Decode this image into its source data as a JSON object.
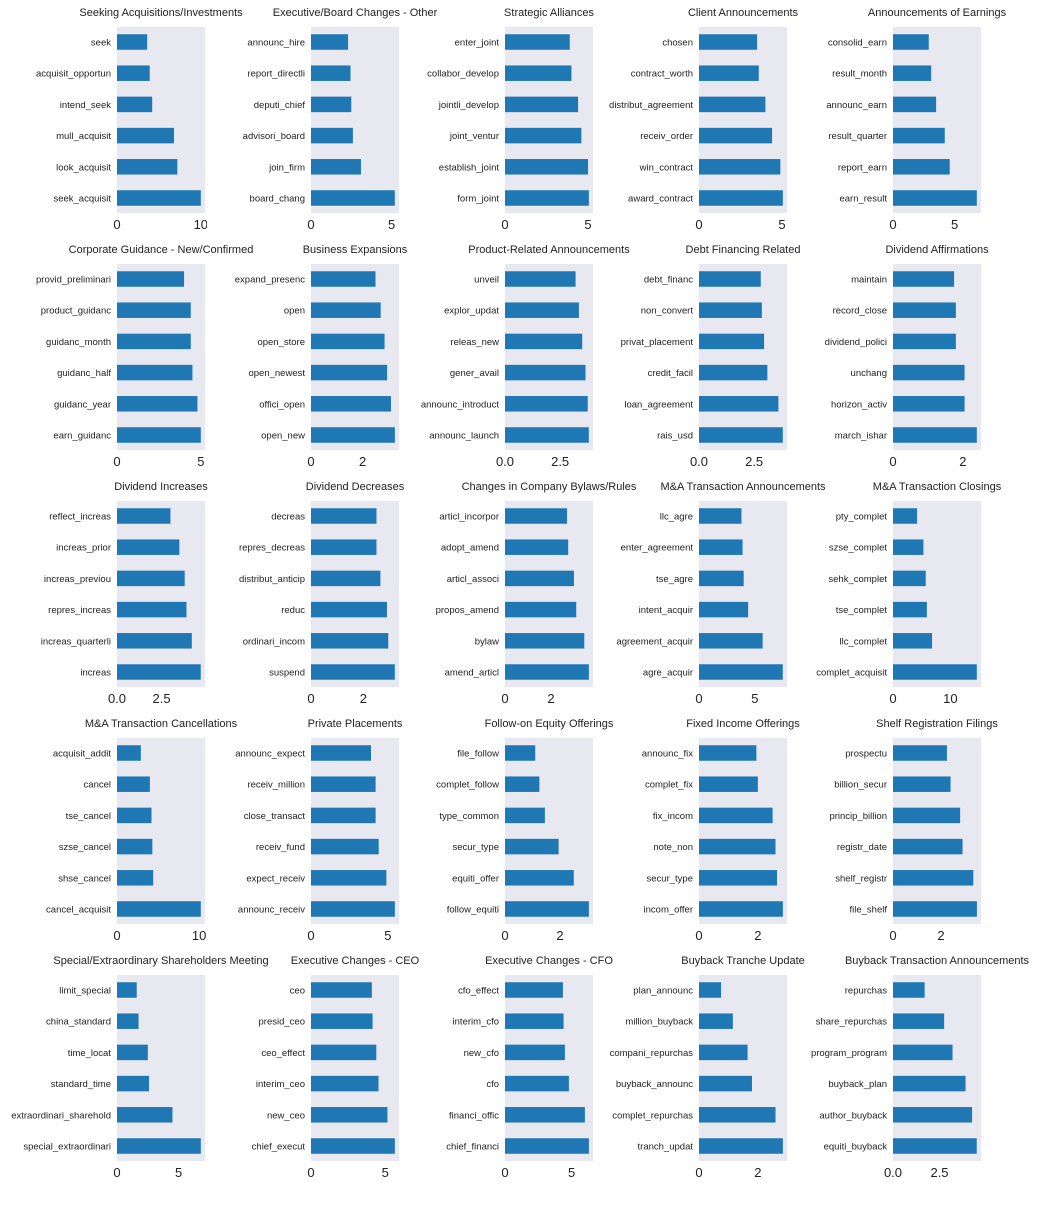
{
  "colors": {
    "bar": "#1f77b4",
    "plot_bg": "#e8e8f1",
    "text": "#222222"
  },
  "chart_data": [
    {
      "type": "bar",
      "orientation": "horizontal",
      "title": "Seeking Acquisitions/Investments",
      "categories": [
        "seek",
        "acquisit_opportun",
        "intend_seek",
        "mull_acquisit",
        "look_acquisit",
        "seek_acquisit"
      ],
      "values": [
        3.6,
        3.9,
        4.2,
        6.8,
        7.2,
        10.0
      ],
      "xticks": [
        0,
        10
      ],
      "xlabels": [
        "0",
        "10"
      ],
      "xlim": [
        0,
        10.5
      ]
    },
    {
      "type": "bar",
      "orientation": "horizontal",
      "title": "Executive/Board Changes - Other",
      "categories": [
        "announc_hire",
        "report_directli",
        "deputi_chief",
        "advisori_board",
        "join_firm",
        "board_chang"
      ],
      "values": [
        2.3,
        2.45,
        2.5,
        2.6,
        3.1,
        5.2
      ],
      "xticks": [
        0,
        5
      ],
      "xlabels": [
        "0",
        "5"
      ],
      "xlim": [
        0,
        5.46
      ]
    },
    {
      "type": "bar",
      "orientation": "horizontal",
      "title": "Strategic Alliances",
      "categories": [
        "enter_joint",
        "collabor_develop",
        "jointli_develop",
        "joint_ventur",
        "establish_joint",
        "form_joint"
      ],
      "values": [
        3.9,
        4.0,
        4.4,
        4.6,
        5.0,
        5.05
      ],
      "xticks": [
        0,
        5
      ],
      "xlabels": [
        "0",
        "5"
      ],
      "xlim": [
        0,
        5.3
      ]
    },
    {
      "type": "bar",
      "orientation": "horizontal",
      "title": "Client Announcements",
      "categories": [
        "chosen",
        "contract_worth",
        "distribut_agreement",
        "receiv_order",
        "win_contract",
        "award_contract"
      ],
      "values": [
        3.5,
        3.6,
        4.0,
        4.4,
        4.9,
        5.05
      ],
      "xticks": [
        0,
        5
      ],
      "xlabels": [
        "0",
        "5"
      ],
      "xlim": [
        0,
        5.3
      ]
    },
    {
      "type": "bar",
      "orientation": "horizontal",
      "title": "Announcements of Earnings",
      "categories": [
        "consolid_earn",
        "result_month",
        "announc_earn",
        "result_quarter",
        "report_earn",
        "earn_result"
      ],
      "values": [
        2.9,
        3.1,
        3.5,
        4.2,
        4.6,
        6.8
      ],
      "xticks": [
        0,
        5
      ],
      "xlabels": [
        "0",
        "5"
      ],
      "xlim": [
        0,
        7.14
      ]
    },
    {
      "type": "bar",
      "orientation": "horizontal",
      "title": "Corporate Guidance - New/Confirmed",
      "categories": [
        "provid_preliminari",
        "product_guidanc",
        "guidanc_month",
        "guidanc_half",
        "guidanc_year",
        "earn_guidanc"
      ],
      "values": [
        4.0,
        4.4,
        4.4,
        4.5,
        4.8,
        5.0
      ],
      "xticks": [
        0,
        5
      ],
      "xlabels": [
        "0",
        "5"
      ],
      "xlim": [
        0,
        5.25
      ]
    },
    {
      "type": "bar",
      "orientation": "horizontal",
      "title": "Business Expansions",
      "categories": [
        "expand_presenc",
        "open",
        "open_store",
        "open_newest",
        "offici_open",
        "open_new"
      ],
      "values": [
        2.5,
        2.7,
        2.85,
        2.95,
        3.1,
        3.25
      ],
      "xticks": [
        0,
        2
      ],
      "xlabels": [
        "0",
        "2"
      ],
      "xlim": [
        0,
        3.41
      ]
    },
    {
      "type": "bar",
      "orientation": "horizontal",
      "title": "Product-Related Announcements",
      "categories": [
        "unveil",
        "explor_updat",
        "releas_new",
        "gener_avail",
        "announc_introduct",
        "announc_launch"
      ],
      "values": [
        3.2,
        3.35,
        3.5,
        3.65,
        3.75,
        3.8
      ],
      "xticks": [
        0,
        2.5
      ],
      "xlabels": [
        "0.0",
        "2.5"
      ],
      "xlim": [
        0,
        3.99
      ]
    },
    {
      "type": "bar",
      "orientation": "horizontal",
      "title": "Debt Financing Related",
      "categories": [
        "debt_financ",
        "non_convert",
        "privat_placement",
        "credit_facil",
        "loan_agreement",
        "rais_usd"
      ],
      "values": [
        2.8,
        2.85,
        2.95,
        3.1,
        3.6,
        3.8
      ],
      "xticks": [
        0,
        2.5
      ],
      "xlabels": [
        "0.0",
        "2.5"
      ],
      "xlim": [
        0,
        3.99
      ]
    },
    {
      "type": "bar",
      "orientation": "horizontal",
      "title": "Dividend Affirmations",
      "categories": [
        "maintain",
        "record_close",
        "dividend_polici",
        "unchang",
        "horizon_activ",
        "march_ishar"
      ],
      "values": [
        1.75,
        1.8,
        1.8,
        2.05,
        2.05,
        2.4
      ],
      "xticks": [
        0,
        2
      ],
      "xlabels": [
        "0",
        "2"
      ],
      "xlim": [
        0,
        2.52
      ]
    },
    {
      "type": "bar",
      "orientation": "horizontal",
      "title": "Dividend Increases",
      "categories": [
        "reflect_increas",
        "increas_prior",
        "increas_previou",
        "repres_increas",
        "increas_quarterli",
        "increas"
      ],
      "values": [
        3.0,
        3.5,
        3.8,
        3.9,
        4.2,
        4.7
      ],
      "xticks": [
        0,
        2.5
      ],
      "xlabels": [
        "0.0",
        "2.5"
      ],
      "xlim": [
        0,
        4.94
      ]
    },
    {
      "type": "bar",
      "orientation": "horizontal",
      "title": "Dividend Decreases",
      "categories": [
        "decreas",
        "repres_decreas",
        "distribut_anticip",
        "reduc",
        "ordinari_incom",
        "suspend"
      ],
      "values": [
        2.5,
        2.5,
        2.65,
        2.9,
        2.95,
        3.2
      ],
      "xticks": [
        0,
        2
      ],
      "xlabels": [
        "0",
        "2"
      ],
      "xlim": [
        0,
        3.36
      ]
    },
    {
      "type": "bar",
      "orientation": "horizontal",
      "title": "Changes in Company Bylaws/Rules",
      "categories": [
        "articl_incorpor",
        "adopt_amend",
        "articl_associ",
        "propos_amend",
        "bylaw",
        "amend_articl"
      ],
      "values": [
        2.7,
        2.75,
        3.0,
        3.1,
        3.45,
        3.65
      ],
      "xticks": [
        0,
        2
      ],
      "xlabels": [
        "0",
        "2"
      ],
      "xlim": [
        0,
        3.83
      ]
    },
    {
      "type": "bar",
      "orientation": "horizontal",
      "title": "M&A Transaction Announcements",
      "categories": [
        "llc_agre",
        "enter_agreement",
        "tse_agre",
        "intent_acquir",
        "agreement_acquir",
        "agre_acquir"
      ],
      "values": [
        3.8,
        3.9,
        4.0,
        4.4,
        5.7,
        7.5
      ],
      "xticks": [
        0,
        5
      ],
      "xlabels": [
        "0",
        "5"
      ],
      "xlim": [
        0,
        7.88
      ]
    },
    {
      "type": "bar",
      "orientation": "horizontal",
      "title": "M&A Transaction Closings",
      "categories": [
        "pty_complet",
        "szse_complet",
        "sehk_complet",
        "tse_complet",
        "llc_complet",
        "complet_acquisit"
      ],
      "values": [
        4.2,
        5.3,
        5.7,
        5.9,
        6.8,
        14.6
      ],
      "xticks": [
        0,
        10
      ],
      "xlabels": [
        "0",
        "10"
      ],
      "xlim": [
        0,
        15.33
      ]
    },
    {
      "type": "bar",
      "orientation": "horizontal",
      "title": "M&A Transaction Cancellations",
      "categories": [
        "acquisit_addit",
        "cancel",
        "tse_cancel",
        "szse_cancel",
        "shse_cancel",
        "cancel_acquisit"
      ],
      "values": [
        2.9,
        4.0,
        4.2,
        4.3,
        4.4,
        10.2
      ],
      "xticks": [
        0,
        10
      ],
      "xlabels": [
        "0",
        "10"
      ],
      "xlim": [
        0,
        10.71
      ]
    },
    {
      "type": "bar",
      "orientation": "horizontal",
      "title": "Private Placements",
      "categories": [
        "announc_expect",
        "receiv_million",
        "close_transact",
        "receiv_fund",
        "expect_receiv",
        "announc_receiv"
      ],
      "values": [
        3.9,
        4.2,
        4.2,
        4.4,
        4.9,
        5.45
      ],
      "xticks": [
        0,
        5
      ],
      "xlabels": [
        "0",
        "5"
      ],
      "xlim": [
        0,
        5.72
      ]
    },
    {
      "type": "bar",
      "orientation": "horizontal",
      "title": "Follow-on Equity Offerings",
      "categories": [
        "file_follow",
        "complet_follow",
        "type_common",
        "secur_type",
        "equiti_offer",
        "follow_equiti"
      ],
      "values": [
        1.1,
        1.25,
        1.45,
        1.95,
        2.5,
        3.05
      ],
      "xticks": [
        0,
        2
      ],
      "xlabels": [
        "0",
        "2"
      ],
      "xlim": [
        0,
        3.2
      ]
    },
    {
      "type": "bar",
      "orientation": "horizontal",
      "title": "Fixed Income Offerings",
      "categories": [
        "announc_fix",
        "complet_fix",
        "fix_incom",
        "note_non",
        "secur_type",
        "incom_offer"
      ],
      "values": [
        1.95,
        2.0,
        2.5,
        2.6,
        2.65,
        2.85
      ],
      "xticks": [
        0,
        2
      ],
      "xlabels": [
        "0",
        "2"
      ],
      "xlim": [
        0,
        2.99
      ]
    },
    {
      "type": "bar",
      "orientation": "horizontal",
      "title": "Shelf Registration Filings",
      "categories": [
        "prospectu",
        "billion_secur",
        "princip_billion",
        "registr_date",
        "shelf_registr",
        "file_shelf"
      ],
      "values": [
        2.25,
        2.4,
        2.8,
        2.9,
        3.35,
        3.5
      ],
      "xticks": [
        0,
        2
      ],
      "xlabels": [
        "0",
        "2"
      ],
      "xlim": [
        0,
        3.67
      ]
    },
    {
      "type": "bar",
      "orientation": "horizontal",
      "title": "Special/Extraordinary Shareholders Meeting",
      "categories": [
        "limit_special",
        "china_standard",
        "time_locat",
        "standard_time",
        "extraordinari_sharehold",
        "special_extraordinari"
      ],
      "values": [
        1.6,
        1.75,
        2.5,
        2.6,
        4.5,
        6.8
      ],
      "xticks": [
        0,
        5
      ],
      "xlabels": [
        "0",
        "5"
      ],
      "xlim": [
        0,
        7.14
      ]
    },
    {
      "type": "bar",
      "orientation": "horizontal",
      "title": "Executive Changes - CEO",
      "categories": [
        "ceo",
        "presid_ceo",
        "ceo_effect",
        "interim_ceo",
        "new_ceo",
        "chief_execut"
      ],
      "values": [
        4.1,
        4.15,
        4.4,
        4.55,
        5.15,
        5.65
      ],
      "xticks": [
        0,
        5
      ],
      "xlabels": [
        "0",
        "5"
      ],
      "xlim": [
        0,
        5.93
      ]
    },
    {
      "type": "bar",
      "orientation": "horizontal",
      "title": "Executive Changes - CFO",
      "categories": [
        "cfo_effect",
        "interim_cfo",
        "new_cfo",
        "cfo",
        "financi_offic",
        "chief_financi"
      ],
      "values": [
        4.35,
        4.4,
        4.5,
        4.8,
        6.0,
        6.3
      ],
      "xticks": [
        0,
        5
      ],
      "xlabels": [
        "0",
        "5"
      ],
      "xlim": [
        0,
        6.61
      ]
    },
    {
      "type": "bar",
      "orientation": "horizontal",
      "title": "Buyback Tranche Update",
      "categories": [
        "plan_announc",
        "million_buyback",
        "compani_repurchas",
        "buyback_announc",
        "complet_repurchas",
        "tranch_updat"
      ],
      "values": [
        0.75,
        1.15,
        1.65,
        1.8,
        2.6,
        2.85
      ],
      "xticks": [
        0,
        2
      ],
      "xlabels": [
        "0",
        "2"
      ],
      "xlim": [
        0,
        2.99
      ]
    },
    {
      "type": "bar",
      "orientation": "horizontal",
      "title": "Buyback Transaction Announcements",
      "categories": [
        "repurchas",
        "share_repurchas",
        "program_program",
        "buyback_plan",
        "author_buyback",
        "equiti_buyback"
      ],
      "values": [
        1.7,
        2.75,
        3.2,
        3.9,
        4.25,
        4.5
      ],
      "xticks": [
        0,
        2.5
      ],
      "xlabels": [
        "0.0",
        "2.5"
      ],
      "xlim": [
        0,
        4.73
      ]
    }
  ]
}
